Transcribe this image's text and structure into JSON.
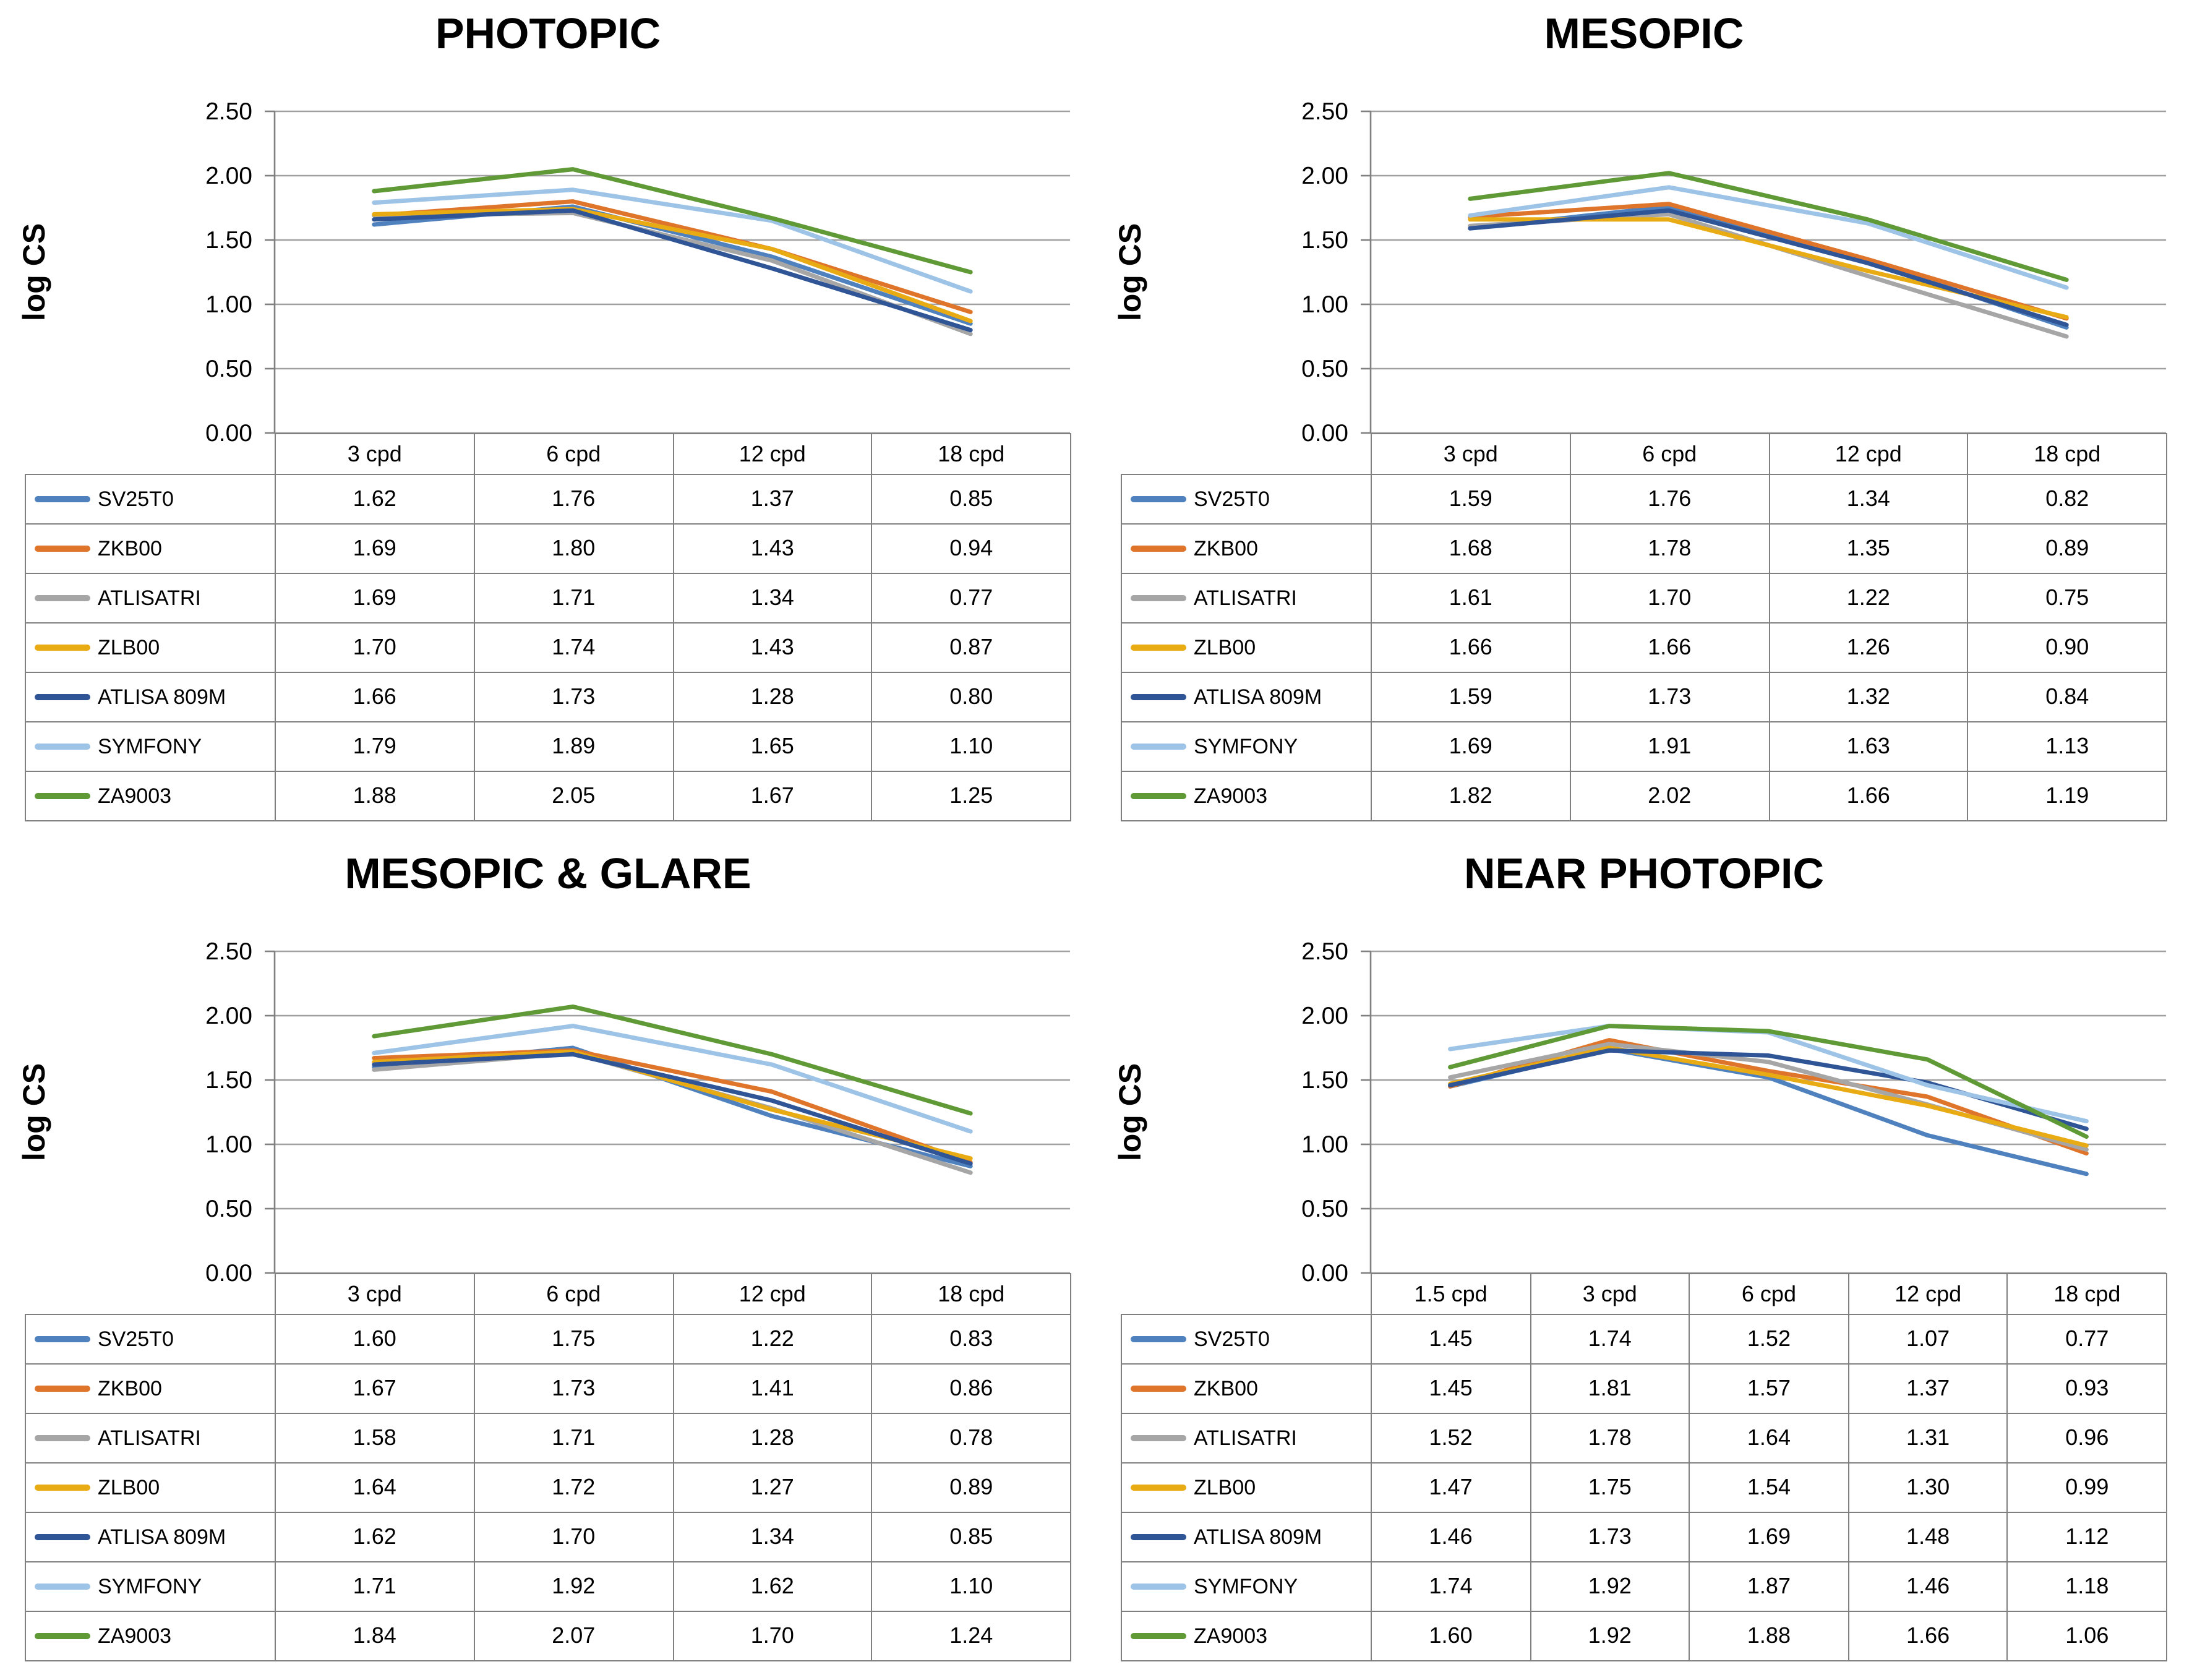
{
  "style": {
    "background": "#ffffff",
    "title_color": "#000000",
    "grid_color": "#a0a0a0",
    "axis_color": "#808080",
    "table_border_color": "#808080",
    "tick_label_color": "#000000",
    "line_width": 3.5
  },
  "axis": {
    "label": "log CS",
    "ymin": 0.0,
    "ymax": 2.5,
    "step": 0.5,
    "tick_labels": [
      "0.00",
      "0.50",
      "1.00",
      "1.50",
      "2.00",
      "2.50"
    ]
  },
  "chart_data": [
    {
      "type": "line",
      "title": "PHOTOPIC",
      "ylabel": "log CS",
      "ylim": [
        0,
        2.5
      ],
      "grid": true,
      "legend_position": "table-left",
      "categories": [
        "3 cpd",
        "6 cpd",
        "12 cpd",
        "18 cpd"
      ],
      "series": [
        {
          "name": "SV25T0",
          "color": "#4E81BD",
          "values": [
            1.62,
            1.76,
            1.37,
            0.85
          ]
        },
        {
          "name": "ZKB00",
          "color": "#DE752B",
          "values": [
            1.69,
            1.8,
            1.43,
            0.94
          ]
        },
        {
          "name": "ATLISATRI",
          "color": "#A6A6A6",
          "values": [
            1.69,
            1.71,
            1.34,
            0.77
          ]
        },
        {
          "name": "ZLB00",
          "color": "#E9AB13",
          "values": [
            1.7,
            1.74,
            1.43,
            0.87
          ]
        },
        {
          "name": "ATLISA 809M",
          "color": "#2F5597",
          "values": [
            1.66,
            1.73,
            1.28,
            0.8
          ]
        },
        {
          "name": "SYMFONY",
          "color": "#9DC3E6",
          "values": [
            1.79,
            1.89,
            1.65,
            1.1
          ]
        },
        {
          "name": "ZA9003",
          "color": "#5F9A37",
          "values": [
            1.88,
            2.05,
            1.67,
            1.25
          ]
        }
      ]
    },
    {
      "type": "line",
      "title": "MESOPIC",
      "ylabel": "log CS",
      "ylim": [
        0,
        2.5
      ],
      "grid": true,
      "legend_position": "table-left",
      "categories": [
        "3 cpd",
        "6 cpd",
        "12 cpd",
        "18 cpd"
      ],
      "series": [
        {
          "name": "SV25T0",
          "color": "#4E81BD",
          "values": [
            1.59,
            1.76,
            1.34,
            0.82
          ]
        },
        {
          "name": "ZKB00",
          "color": "#DE752B",
          "values": [
            1.68,
            1.78,
            1.35,
            0.89
          ]
        },
        {
          "name": "ATLISATRI",
          "color": "#A6A6A6",
          "values": [
            1.61,
            1.7,
            1.22,
            0.75
          ]
        },
        {
          "name": "ZLB00",
          "color": "#E9AB13",
          "values": [
            1.66,
            1.66,
            1.26,
            0.9
          ]
        },
        {
          "name": "ATLISA 809M",
          "color": "#2F5597",
          "values": [
            1.59,
            1.73,
            1.32,
            0.84
          ]
        },
        {
          "name": "SYMFONY",
          "color": "#9DC3E6",
          "values": [
            1.69,
            1.91,
            1.63,
            1.13
          ]
        },
        {
          "name": "ZA9003",
          "color": "#5F9A37",
          "values": [
            1.82,
            2.02,
            1.66,
            1.19
          ]
        }
      ]
    },
    {
      "type": "line",
      "title": "MESOPIC & GLARE",
      "ylabel": "log CS",
      "ylim": [
        0,
        2.5
      ],
      "grid": true,
      "legend_position": "table-left",
      "categories": [
        "3 cpd",
        "6 cpd",
        "12 cpd",
        "18 cpd"
      ],
      "series": [
        {
          "name": "SV25T0",
          "color": "#4E81BD",
          "values": [
            1.6,
            1.75,
            1.22,
            0.83
          ]
        },
        {
          "name": "ZKB00",
          "color": "#DE752B",
          "values": [
            1.67,
            1.73,
            1.41,
            0.86
          ]
        },
        {
          "name": "ATLISATRI",
          "color": "#A6A6A6",
          "values": [
            1.58,
            1.71,
            1.28,
            0.78
          ]
        },
        {
          "name": "ZLB00",
          "color": "#E9AB13",
          "values": [
            1.64,
            1.72,
            1.27,
            0.89
          ]
        },
        {
          "name": "ATLISA 809M",
          "color": "#2F5597",
          "values": [
            1.62,
            1.7,
            1.34,
            0.85
          ]
        },
        {
          "name": "SYMFONY",
          "color": "#9DC3E6",
          "values": [
            1.71,
            1.92,
            1.62,
            1.1
          ]
        },
        {
          "name": "ZA9003",
          "color": "#5F9A37",
          "values": [
            1.84,
            2.07,
            1.7,
            1.24
          ]
        }
      ]
    },
    {
      "type": "line",
      "title": "NEAR PHOTOPIC",
      "ylabel": "log CS",
      "ylim": [
        0,
        2.5
      ],
      "grid": true,
      "legend_position": "table-left",
      "categories": [
        "1.5 cpd",
        "3 cpd",
        "6 cpd",
        "12 cpd",
        "18 cpd"
      ],
      "series": [
        {
          "name": "SV25T0",
          "color": "#4E81BD",
          "values": [
            1.45,
            1.74,
            1.52,
            1.07,
            0.77
          ]
        },
        {
          "name": "ZKB00",
          "color": "#DE752B",
          "values": [
            1.45,
            1.81,
            1.57,
            1.37,
            0.93
          ]
        },
        {
          "name": "ATLISATRI",
          "color": "#A6A6A6",
          "values": [
            1.52,
            1.78,
            1.64,
            1.31,
            0.96
          ]
        },
        {
          "name": "ZLB00",
          "color": "#E9AB13",
          "values": [
            1.47,
            1.75,
            1.54,
            1.3,
            0.99
          ]
        },
        {
          "name": "ATLISA 809M",
          "color": "#2F5597",
          "values": [
            1.46,
            1.73,
            1.69,
            1.48,
            1.12
          ]
        },
        {
          "name": "SYMFONY",
          "color": "#9DC3E6",
          "values": [
            1.74,
            1.92,
            1.87,
            1.46,
            1.18
          ]
        },
        {
          "name": "ZA9003",
          "color": "#5F9A37",
          "values": [
            1.6,
            1.92,
            1.88,
            1.66,
            1.06
          ]
        }
      ]
    }
  ]
}
